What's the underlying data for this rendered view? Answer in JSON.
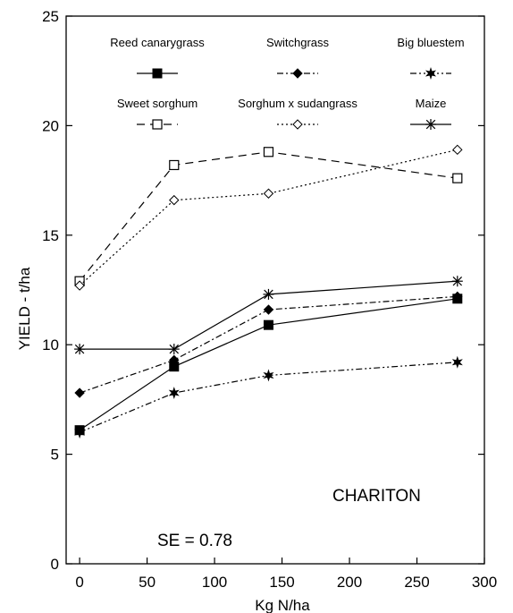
{
  "chart_data": {
    "type": "line",
    "title": "",
    "xlabel": "Kg N/ha",
    "ylabel": "YIELD - t/ha",
    "xlim": [
      -10,
      300
    ],
    "ylim": [
      0,
      25
    ],
    "xticks": [
      0,
      50,
      100,
      150,
      200,
      250,
      300
    ],
    "yticks": [
      0,
      5,
      10,
      15,
      20,
      25
    ],
    "grid": false,
    "legend_position": "top",
    "annotations": [
      "CHARITON",
      "SE = 0.78"
    ],
    "series": [
      {
        "name": "Reed canarygrass",
        "marker": "filled-square",
        "line": "solid",
        "color": "#000000",
        "x": [
          0,
          70,
          140,
          280
        ],
        "y": [
          6.1,
          9.0,
          10.9,
          12.1
        ]
      },
      {
        "name": "Switchgrass",
        "marker": "filled-diamond",
        "line": "dashdot",
        "color": "#000000",
        "x": [
          0,
          70,
          140,
          280
        ],
        "y": [
          7.8,
          9.3,
          11.6,
          12.2
        ]
      },
      {
        "name": "Big bluestem",
        "marker": "filled-star",
        "line": "dashdotdot",
        "color": "#000000",
        "x": [
          0,
          70,
          140,
          280
        ],
        "y": [
          6.0,
          7.8,
          8.6,
          9.2
        ]
      },
      {
        "name": "Sweet sorghum",
        "marker": "open-square",
        "line": "dashed",
        "color": "#000000",
        "x": [
          0,
          70,
          140,
          280
        ],
        "y": [
          12.9,
          18.2,
          18.8,
          17.6
        ]
      },
      {
        "name": "Sorghum x sudangrass",
        "marker": "open-diamond",
        "line": "dotted",
        "color": "#000000",
        "x": [
          0,
          70,
          140,
          280
        ],
        "y": [
          12.7,
          16.6,
          16.9,
          18.9
        ]
      },
      {
        "name": "Maize",
        "marker": "asterisk",
        "line": "solid",
        "color": "#000000",
        "x": [
          0,
          70,
          140,
          280
        ],
        "y": [
          9.8,
          9.8,
          12.3,
          12.9
        ]
      }
    ]
  }
}
